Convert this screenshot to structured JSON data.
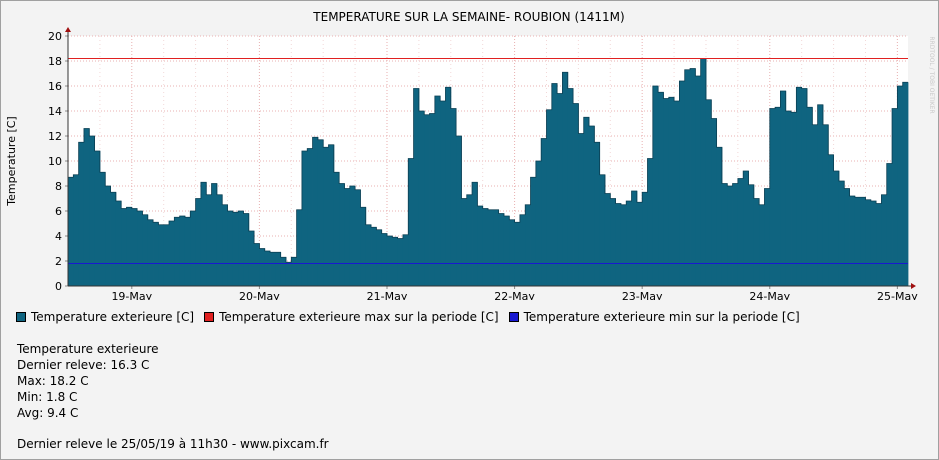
{
  "chart_data": {
    "type": "bar",
    "title": "TEMPERATURE SUR LA SEMAINE- ROUBION (1411M)",
    "ylabel": "Temperature [C]",
    "xlabel": "",
    "ylim": [
      0,
      20
    ],
    "yticks": [
      0,
      2,
      4,
      6,
      8,
      10,
      12,
      14,
      16,
      18,
      20
    ],
    "grid": true,
    "side_label": "RRDTOOL / TOBI OETIKER",
    "x_tick_labels": [
      "19-May",
      "20-May",
      "21-May",
      "22-May",
      "23-May",
      "24-May",
      "25-May"
    ],
    "series": [
      {
        "name": "Temperature exterieure [C]",
        "color": "#0f6480",
        "values": [
          8.7,
          8.9,
          11.5,
          12.6,
          12.0,
          10.8,
          9.1,
          8.0,
          7.5,
          6.8,
          6.2,
          6.3,
          6.2,
          6.0,
          5.7,
          5.3,
          5.1,
          4.9,
          4.9,
          5.2,
          5.5,
          5.6,
          5.5,
          6.0,
          7.0,
          8.3,
          7.3,
          8.2,
          7.3,
          6.5,
          6.0,
          5.9,
          6.0,
          5.8,
          4.4,
          3.4,
          3.0,
          2.8,
          2.7,
          2.7,
          2.3,
          1.9,
          2.3,
          6.1,
          10.8,
          11.0,
          11.9,
          11.7,
          11.1,
          11.3,
          9.1,
          8.2,
          7.8,
          8.0,
          7.7,
          6.3,
          4.9,
          4.7,
          4.5,
          4.2,
          4.0,
          3.9,
          3.8,
          4.1,
          10.2,
          15.8,
          14.0,
          13.7,
          13.8,
          15.2,
          14.8,
          15.9,
          14.2,
          12.0,
          7.0,
          7.3,
          8.3,
          6.4,
          6.2,
          6.1,
          6.1,
          5.8,
          5.6,
          5.3,
          5.1,
          5.7,
          6.5,
          8.7,
          10.0,
          11.8,
          14.1,
          16.2,
          15.4,
          17.1,
          15.8,
          14.6,
          12.2,
          13.5,
          12.8,
          11.5,
          8.9,
          7.4,
          7.0,
          6.6,
          6.5,
          6.8,
          7.6,
          6.7,
          7.5,
          10.2,
          16.0,
          15.5,
          15.0,
          15.1,
          14.8,
          16.4,
          17.3,
          17.4,
          16.8,
          18.2,
          14.9,
          13.4,
          11.1,
          8.2,
          8.0,
          8.2,
          8.6,
          9.2,
          8.1,
          7.0,
          6.5,
          7.8,
          14.2,
          14.3,
          15.6,
          14.0,
          13.9,
          15.9,
          15.8,
          14.3,
          12.9,
          14.5,
          12.9,
          10.5,
          9.2,
          8.4,
          7.8,
          7.2,
          7.1,
          7.1,
          6.9,
          6.8,
          6.6,
          7.3,
          9.8,
          14.2,
          16.0,
          16.3
        ]
      },
      {
        "name": "Temperature exterieure max sur la periode [C]",
        "color": "#e02020",
        "line_value": 18.2
      },
      {
        "name": "Temperature exterieure min sur la periode [C]",
        "color": "#1818d0",
        "line_value": 1.8
      }
    ]
  },
  "summary": {
    "heading": "Temperature exterieure",
    "last": "Dernier releve: 16.3 C",
    "max": "Max: 18.2 C",
    "min": "Min: 1.8 C",
    "avg": "Avg: 9.4 C"
  },
  "footer": "Dernier releve le 25/05/19 à 11h30 - www.pixcam.fr"
}
